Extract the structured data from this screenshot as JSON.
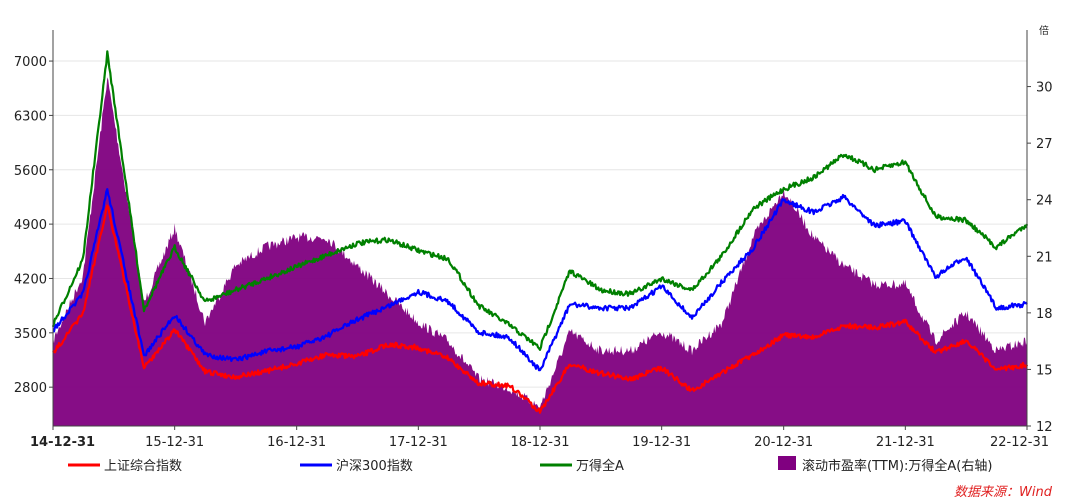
{
  "chart_data": {
    "type": "line",
    "x": [
      "14-12-31",
      "15-03-31",
      "15-06-12",
      "15-09-30",
      "15-12-31",
      "16-03-31",
      "16-06-30",
      "16-09-30",
      "16-12-31",
      "17-03-31",
      "17-06-30",
      "17-09-30",
      "17-12-31",
      "18-03-31",
      "18-06-30",
      "18-09-30",
      "18-12-31",
      "19-03-31",
      "19-06-30",
      "19-09-30",
      "19-12-31",
      "20-03-31",
      "20-06-30",
      "20-09-30",
      "20-12-31",
      "21-03-31",
      "21-06-30",
      "21-09-30",
      "21-12-31",
      "22-03-31",
      "22-06-30",
      "22-09-30",
      "22-12-31"
    ],
    "x_tick_labels": [
      "14-12-31",
      "15-12-31",
      "16-12-31",
      "17-12-31",
      "18-12-31",
      "19-12-31",
      "20-12-31",
      "21-12-31",
      "22-12-31"
    ],
    "y_left": {
      "ylim": [
        2300,
        7400
      ],
      "ticks": [
        2800,
        3500,
        4200,
        4900,
        5600,
        6300,
        7000
      ]
    },
    "y_right": {
      "ylim": [
        12,
        33
      ],
      "ticks": [
        12,
        15,
        18,
        21,
        24,
        27,
        30
      ],
      "unit": "倍"
    },
    "series": [
      {
        "name": "上证综合指数",
        "color": "#ff0000",
        "axis": "left",
        "kind": "line",
        "values": [
          3235,
          3750,
          5150,
          3050,
          3540,
          3000,
          2930,
          3005,
          3100,
          3220,
          3190,
          3350,
          3310,
          3170,
          2850,
          2820,
          2490,
          3100,
          2980,
          2905,
          3050,
          2750,
          2990,
          3220,
          3470,
          3440,
          3590,
          3570,
          3640,
          3250,
          3400,
          3020,
          3090
        ]
      },
      {
        "name": "沪深300指数",
        "color": "#0000ff",
        "axis": "left",
        "kind": "line",
        "values": [
          3530,
          4000,
          5350,
          3200,
          3730,
          3220,
          3150,
          3260,
          3320,
          3460,
          3670,
          3840,
          4030,
          3900,
          3510,
          3440,
          3010,
          3870,
          3820,
          3820,
          4100,
          3690,
          4160,
          4590,
          5210,
          5050,
          5250,
          4880,
          4940,
          4220,
          4480,
          3820,
          3870
        ]
      },
      {
        "name": "万得全A",
        "color": "#008000",
        "axis": "left",
        "kind": "line",
        "values": [
          3600,
          4450,
          7100,
          3800,
          4600,
          3900,
          4050,
          4200,
          4350,
          4500,
          4650,
          4700,
          4560,
          4450,
          3850,
          3600,
          3300,
          4300,
          4050,
          4000,
          4200,
          4050,
          4500,
          5100,
          5350,
          5500,
          5800,
          5600,
          5700,
          5000,
          4950,
          4600,
          4900
        ]
      },
      {
        "name": "滚动市盈率(TTM):万得全A(右轴)",
        "color": "#800080",
        "axis": "right",
        "kind": "area",
        "values": [
          16.5,
          20.0,
          30.5,
          18.5,
          22.5,
          17.5,
          20.5,
          21.5,
          22.0,
          22.0,
          20.5,
          19.0,
          17.5,
          16.5,
          14.5,
          14.0,
          13.0,
          17.0,
          16.0,
          16.0,
          17.0,
          16.0,
          17.5,
          22.0,
          24.5,
          22.0,
          20.5,
          19.5,
          19.5,
          16.5,
          18.0,
          16.0,
          16.5
        ]
      }
    ],
    "legend_position": "bottom",
    "grid": true,
    "source": "数据来源：Wind"
  }
}
